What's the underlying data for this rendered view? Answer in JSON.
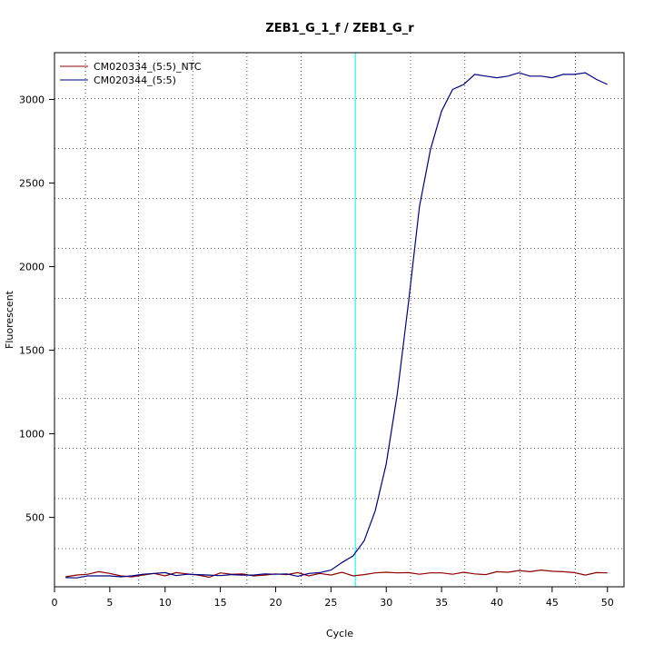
{
  "chart_data": {
    "type": "line",
    "title": "ZEB1_G_1_f / ZEB1_G_r",
    "xlabel": "Cycle",
    "ylabel": "Fluorescent",
    "xlim": [
      0,
      51.5
    ],
    "ylim": [
      85,
      3280
    ],
    "xticks": [
      0,
      5,
      10,
      15,
      20,
      25,
      30,
      35,
      40,
      45,
      50
    ],
    "yticks": [
      500,
      1000,
      1500,
      2000,
      2500,
      3000
    ],
    "grid": true,
    "grid_style": "dotted",
    "grid_x": [
      2.8,
      7.6,
      12.5,
      17.4,
      22.3,
      27.2,
      32.2,
      37.1,
      42.1,
      47.1
    ],
    "grid_y": [
      313,
      613,
      913,
      1211,
      1510,
      1810,
      2110,
      2407,
      2707,
      3005
    ],
    "legend_position": "top-left",
    "threshold": {
      "x": 27.2,
      "color": "#00ffff"
    },
    "series": [
      {
        "name": "CM020334_(5:5)_NTC",
        "color": "#8b0000",
        "x": [
          1,
          2,
          3,
          4,
          5,
          6,
          7,
          8,
          9,
          10,
          11,
          12,
          13,
          14,
          15,
          16,
          17,
          18,
          19,
          20,
          21,
          22,
          23,
          24,
          25,
          26,
          27,
          28,
          29,
          30,
          31,
          32,
          33,
          34,
          35,
          36,
          37,
          38,
          39,
          40,
          41,
          42,
          43,
          44,
          45,
          46,
          47,
          48,
          49,
          50
        ],
        "values": [
          145,
          155,
          160,
          175,
          165,
          150,
          145,
          155,
          165,
          150,
          170,
          162,
          155,
          142,
          168,
          160,
          162,
          150,
          155,
          162,
          158,
          170,
          150,
          165,
          155,
          172,
          150,
          158,
          168,
          172,
          168,
          170,
          160,
          168,
          168,
          160,
          172,
          162,
          158,
          175,
          172,
          182,
          175,
          185,
          178,
          175,
          170,
          155,
          170,
          168
        ]
      },
      {
        "name": "CM020344_(5:5)",
        "color": "#000080",
        "x": [
          1,
          2,
          3,
          4,
          5,
          6,
          7,
          8,
          9,
          10,
          11,
          12,
          13,
          14,
          15,
          16,
          17,
          18,
          19,
          20,
          21,
          22,
          23,
          24,
          25,
          26,
          27,
          28,
          29,
          30,
          31,
          32,
          33,
          34,
          35,
          36,
          37,
          38,
          39,
          40,
          41,
          42,
          43,
          44,
          45,
          46,
          47,
          48,
          49,
          50
        ],
        "values": [
          140,
          138,
          150,
          150,
          150,
          145,
          150,
          160,
          165,
          170,
          152,
          160,
          158,
          155,
          152,
          158,
          155,
          155,
          162,
          160,
          162,
          148,
          165,
          170,
          185,
          230,
          270,
          360,
          540,
          820,
          1240,
          1780,
          2360,
          2700,
          2930,
          3060,
          3090,
          3150,
          3140,
          3130,
          3140,
          3160,
          3140,
          3140,
          3130,
          3150,
          3150,
          3160,
          3120,
          3090
        ]
      }
    ]
  }
}
